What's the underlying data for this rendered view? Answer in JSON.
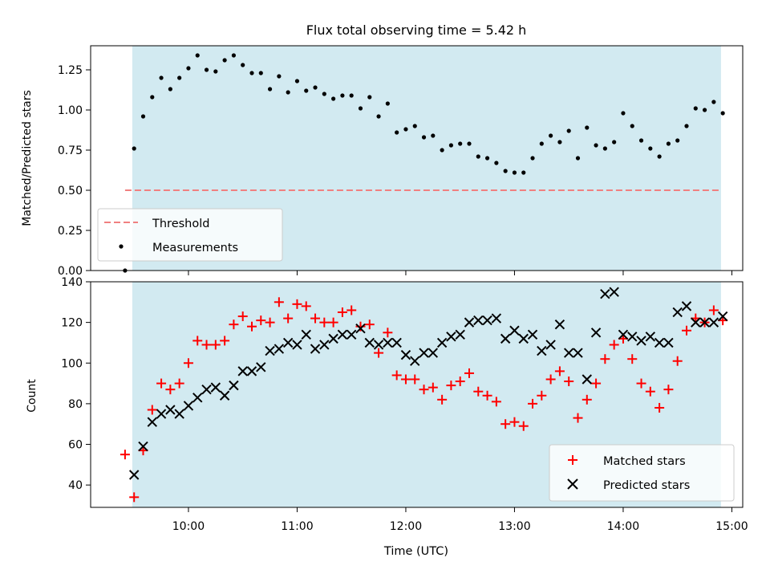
{
  "chart_data": [
    {
      "type": "scatter",
      "title": "Flux total observing time = 5.42 h",
      "ylabel": "Matched/Predicted stars",
      "xlabel": "",
      "ylim": [
        0,
        1.4
      ],
      "yticks": [
        "0.00",
        "0.25",
        "0.50",
        "0.75",
        "1.00",
        "1.25"
      ],
      "ytick_values": [
        0,
        0.25,
        0.5,
        0.75,
        1.0,
        1.25
      ],
      "shaded_region": {
        "start": "09:29",
        "end": "14:54",
        "color": "#add8e6"
      },
      "threshold": {
        "name": "Threshold",
        "value": 0.5,
        "start": "09:25",
        "end": "14:54",
        "color": "#f08080"
      },
      "legend": {
        "placement": "lower-left",
        "entries": [
          "Threshold",
          "Measurements"
        ]
      },
      "series": [
        {
          "name": "Measurements",
          "marker": "dot",
          "color": "#000000",
          "x": [
            "09:25",
            "09:30",
            "09:35",
            "09:40",
            "09:45",
            "09:50",
            "09:55",
            "10:00",
            "10:05",
            "10:10",
            "10:15",
            "10:20",
            "10:25",
            "10:30",
            "10:35",
            "10:40",
            "10:45",
            "10:50",
            "10:55",
            "11:00",
            "11:05",
            "11:10",
            "11:15",
            "11:20",
            "11:25",
            "11:30",
            "11:35",
            "11:40",
            "11:45",
            "11:50",
            "11:55",
            "12:00",
            "12:05",
            "12:10",
            "12:15",
            "12:20",
            "12:25",
            "12:30",
            "12:35",
            "12:40",
            "12:45",
            "12:50",
            "12:55",
            "13:00",
            "13:05",
            "13:10",
            "13:15",
            "13:20",
            "13:25",
            "13:30",
            "13:35",
            "13:40",
            "13:45",
            "13:50",
            "13:55",
            "14:00",
            "14:05",
            "14:10",
            "14:15",
            "14:20",
            "14:25",
            "14:30",
            "14:35",
            "14:40",
            "14:45",
            "14:50",
            "14:55"
          ],
          "y": [
            0.0,
            0.76,
            0.96,
            1.08,
            1.2,
            1.13,
            1.2,
            1.26,
            1.34,
            1.25,
            1.24,
            1.31,
            1.34,
            1.28,
            1.23,
            1.23,
            1.13,
            1.21,
            1.11,
            1.18,
            1.12,
            1.14,
            1.1,
            1.07,
            1.09,
            1.09,
            1.01,
            1.08,
            0.96,
            1.04,
            0.86,
            0.88,
            0.9,
            0.83,
            0.84,
            0.75,
            0.78,
            0.79,
            0.79,
            0.71,
            0.7,
            0.67,
            0.62,
            0.61,
            0.61,
            0.7,
            0.79,
            0.84,
            0.8,
            0.87,
            0.7,
            0.89,
            0.78,
            0.76,
            0.8,
            0.98,
            0.9,
            0.81,
            0.76,
            0.71,
            0.79,
            0.81,
            0.9,
            1.01,
            1.0,
            1.05,
            0.98
          ]
        }
      ]
    },
    {
      "type": "scatter",
      "title": "",
      "xlabel": "Time (UTC)",
      "ylabel": "Count",
      "ylim": [
        29,
        140
      ],
      "yticks": [
        "40",
        "60",
        "80",
        "100",
        "120",
        "140"
      ],
      "ytick_values": [
        40,
        60,
        80,
        100,
        120,
        140
      ],
      "xticks": [
        "10:00",
        "11:00",
        "12:00",
        "13:00",
        "14:00",
        "15:00"
      ],
      "shaded_region": {
        "start": "09:29",
        "end": "14:54",
        "color": "#add8e6"
      },
      "legend": {
        "placement": "lower-right",
        "entries": [
          "Matched stars",
          "Predicted stars"
        ]
      },
      "series": [
        {
          "name": "Matched stars",
          "marker": "plus",
          "color": "#ff0000",
          "x": [
            "09:25",
            "09:30",
            "09:35",
            "09:40",
            "09:45",
            "09:50",
            "09:55",
            "10:00",
            "10:05",
            "10:10",
            "10:15",
            "10:20",
            "10:25",
            "10:30",
            "10:35",
            "10:40",
            "10:45",
            "10:50",
            "10:55",
            "11:00",
            "11:05",
            "11:10",
            "11:15",
            "11:20",
            "11:25",
            "11:30",
            "11:35",
            "11:40",
            "11:45",
            "11:50",
            "11:55",
            "12:00",
            "12:05",
            "12:10",
            "12:15",
            "12:20",
            "12:25",
            "12:30",
            "12:35",
            "12:40",
            "12:45",
            "12:50",
            "12:55",
            "13:00",
            "13:05",
            "13:10",
            "13:15",
            "13:20",
            "13:25",
            "13:30",
            "13:35",
            "13:40",
            "13:45",
            "13:50",
            "13:55",
            "14:00",
            "14:05",
            "14:10",
            "14:15",
            "14:20",
            "14:25",
            "14:30",
            "14:35",
            "14:40",
            "14:45",
            "14:50",
            "14:55"
          ],
          "y": [
            55,
            34,
            57,
            77,
            90,
            87,
            90,
            100,
            111,
            109,
            109,
            111,
            119,
            123,
            118,
            121,
            120,
            130,
            122,
            129,
            128,
            122,
            120,
            120,
            125,
            126,
            118,
            119,
            105,
            115,
            94,
            92,
            92,
            87,
            88,
            82,
            89,
            91,
            95,
            86,
            84,
            81,
            70,
            71,
            69,
            80,
            84,
            92,
            96,
            91,
            73,
            82,
            90,
            102,
            109,
            112,
            102,
            90,
            86,
            78,
            87,
            101,
            116,
            122,
            120,
            126,
            121
          ]
        },
        {
          "name": "Predicted stars",
          "marker": "x",
          "color": "#000000",
          "x": [
            "09:30",
            "09:35",
            "09:40",
            "09:45",
            "09:50",
            "09:55",
            "10:00",
            "10:05",
            "10:10",
            "10:15",
            "10:20",
            "10:25",
            "10:30",
            "10:35",
            "10:40",
            "10:45",
            "10:50",
            "10:55",
            "11:00",
            "11:05",
            "11:10",
            "11:15",
            "11:20",
            "11:25",
            "11:30",
            "11:35",
            "11:40",
            "11:45",
            "11:50",
            "11:55",
            "12:00",
            "12:05",
            "12:10",
            "12:15",
            "12:20",
            "12:25",
            "12:30",
            "12:35",
            "12:40",
            "12:45",
            "12:50",
            "12:55",
            "13:00",
            "13:05",
            "13:10",
            "13:15",
            "13:20",
            "13:25",
            "13:30",
            "13:35",
            "13:40",
            "13:45",
            "13:50",
            "13:55",
            "14:00",
            "14:05",
            "14:10",
            "14:15",
            "14:20",
            "14:25",
            "14:30",
            "14:35",
            "14:40",
            "14:45",
            "14:50",
            "14:55"
          ],
          "y": [
            45,
            59,
            71,
            75,
            77,
            75,
            79,
            83,
            87,
            88,
            84,
            89,
            96,
            96,
            98,
            106,
            107,
            110,
            109,
            114,
            107,
            109,
            112,
            114,
            114,
            117,
            110,
            109,
            110,
            110,
            104,
            101,
            105,
            105,
            110,
            113,
            114,
            120,
            121,
            121,
            122,
            112,
            116,
            112,
            114,
            106,
            109,
            119,
            105,
            105,
            92,
            115,
            134,
            135,
            114,
            113,
            111,
            113,
            110,
            110,
            125,
            128,
            120,
            120,
            120,
            123
          ]
        }
      ]
    }
  ]
}
